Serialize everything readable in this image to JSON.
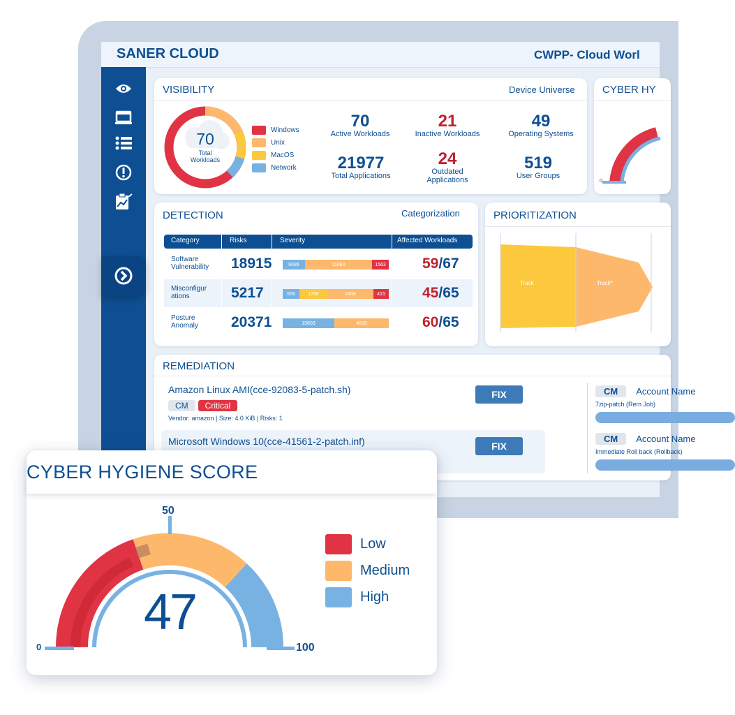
{
  "header": {
    "brand": "SANER CLOUD",
    "title": "CWPP- Cloud Worl"
  },
  "sidebar": {
    "items": [
      {
        "icon": "eye-icon"
      },
      {
        "icon": "monitor-icon"
      },
      {
        "icon": "list-icon"
      },
      {
        "icon": "alert-circle-icon"
      },
      {
        "icon": "clipboard-chart-icon"
      },
      {
        "icon": "chevron-right-circle-icon"
      }
    ]
  },
  "visibility": {
    "title": "VISIBILITY",
    "right": "Device Universe",
    "donut": {
      "value": "70",
      "label_line1": "Total",
      "label_line2": "Workloads"
    },
    "legend": [
      "Windows",
      "Unix",
      "MacOS",
      "Network"
    ],
    "stats": [
      {
        "value": "70",
        "label": "Active Workloads",
        "red": false
      },
      {
        "value": "21",
        "label": "Inactive Workloads",
        "red": true
      },
      {
        "value": "49",
        "label": "Operating Systems",
        "red": false
      },
      {
        "value": "21977",
        "label": "Total Applications",
        "red": false
      },
      {
        "value": "24",
        "label1": "Outdated",
        "label2": "Applications",
        "red": true
      },
      {
        "value": "519",
        "label": "User Groups",
        "red": false
      }
    ]
  },
  "cyber_small": {
    "title": "CYBER HY",
    "zero": "0"
  },
  "detection": {
    "title": "DETECTION",
    "right": "Categorization",
    "columns": [
      "Category",
      "Risks",
      "Severity",
      "Affected Workloads"
    ],
    "rows": [
      {
        "cat1": "Software",
        "cat2": "Vulnerability",
        "risks": "18915",
        "bars": [
          "6036",
          "11080",
          "1563"
        ],
        "affected": "59",
        "total": "/67"
      },
      {
        "cat1": "Misconfigur",
        "cat2": "ations",
        "risks": "5217",
        "bars": [
          "556",
          "1788",
          "2458",
          "415"
        ],
        "affected": "45",
        "total": "/65"
      },
      {
        "cat1": "Posture",
        "cat2": "Anomaly",
        "risks": "20371",
        "bars": [
          "15803",
          "4539"
        ],
        "affected": "60",
        "total": "/65"
      }
    ]
  },
  "prioritization": {
    "title": "PRIORITIZATION",
    "track1": "Track",
    "track2": "Track*"
  },
  "remediation": {
    "title": "REMEDIATION",
    "items": [
      {
        "title": "Amazon Linux AMI(cce-92083-5-patch.sh)",
        "tag1": "CM",
        "tag2": "Critical",
        "meta": "Vendor: amazon | Size: 4.0 KiB | Risks: 1",
        "fix": "FIX"
      },
      {
        "title": "Microsoft Windows 10(cce-41561-2-patch.inf)",
        "fix": "FIX"
      }
    ],
    "right": [
      {
        "cm": "CM",
        "account": "Account Name",
        "sub": "7zip-patch (Rem Job)"
      },
      {
        "cm": "CM",
        "account": "Account Name",
        "sub": "Immediate Roll back (Rollback)"
      }
    ]
  },
  "cyber_hygiene": {
    "title": "CYBER HYGIENE SCORE",
    "score": "47",
    "min": "0",
    "mid": "50",
    "max": "100",
    "legend": [
      {
        "label": "Low",
        "color": "#e03444"
      },
      {
        "label": "Medium",
        "color": "#fdb86c"
      },
      {
        "label": "High",
        "color": "#78b2e2"
      }
    ]
  },
  "colors": {
    "primary": "#0d4f92",
    "red": "#e03444",
    "orange": "#fdb86c",
    "yellow": "#fcc83d",
    "blue": "#78b2e2"
  }
}
